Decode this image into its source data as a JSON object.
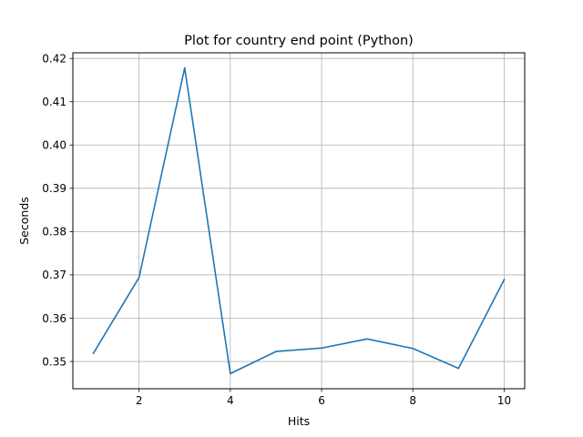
{
  "chart_data": {
    "type": "line",
    "title": "Plot for country end point (Python)",
    "xlabel": "Hits",
    "ylabel": "Seconds",
    "x": [
      1,
      2,
      3,
      4,
      5,
      6,
      7,
      8,
      9,
      10
    ],
    "series": [
      {
        "values": [
          0.3519,
          0.3694,
          0.4178,
          0.3472,
          0.3523,
          0.3531,
          0.3552,
          0.353,
          0.3484,
          0.3689
        ],
        "color": "#1f77b4"
      }
    ],
    "xlim": [
      0.55,
      10.45
    ],
    "ylim": [
      0.3437,
      0.4213
    ],
    "x_ticks": [
      2,
      4,
      6,
      8,
      10
    ],
    "x_tick_labels": [
      "2",
      "4",
      "6",
      "8",
      "10"
    ],
    "y_ticks": [
      0.35,
      0.36,
      0.37,
      0.38,
      0.39,
      0.4,
      0.41,
      0.42
    ],
    "y_tick_labels": [
      "0.35",
      "0.36",
      "0.37",
      "0.38",
      "0.39",
      "0.40",
      "0.41",
      "0.42"
    ],
    "grid": true,
    "legend": "none"
  }
}
